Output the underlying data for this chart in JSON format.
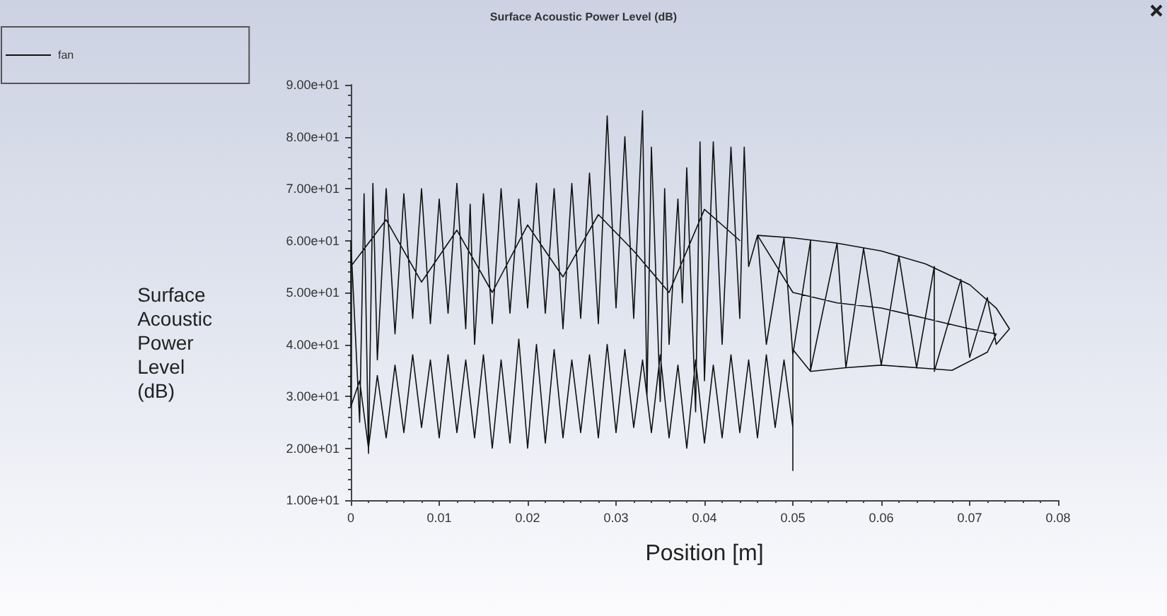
{
  "chart_data": {
    "type": "line",
    "title": "Surface Acoustic Power Level (dB)",
    "xlabel": "Position [m]",
    "ylabel": "Surface Acoustic Power Level (dB)",
    "legend": "top left",
    "xlim": [
      0,
      0.08
    ],
    "xticks": [
      0,
      0.01,
      0.02,
      0.03,
      0.04,
      0.05,
      0.06,
      0.07,
      0.08
    ],
    "ylim": [
      10,
      90
    ],
    "yticks": [
      {
        "value": 10,
        "label": "1.00e+01"
      },
      {
        "value": 20,
        "label": "2.00e+01"
      },
      {
        "value": 30,
        "label": "3.00e+01"
      },
      {
        "value": 40,
        "label": "4.00e+01"
      },
      {
        "value": 50,
        "label": "5.00e+01"
      },
      {
        "value": 60,
        "label": "6.00e+01"
      },
      {
        "value": 70,
        "label": "7.00e+01"
      },
      {
        "value": 80,
        "label": "8.00e+01"
      },
      {
        "value": 90,
        "label": "9.00e+01"
      }
    ],
    "series": [
      {
        "name": "fan",
        "color": "#111111",
        "x": [
          0,
          0,
          0.001,
          0.0015,
          0.002,
          0.0025,
          0.003,
          0.004,
          0.005,
          0.006,
          0.007,
          0.008,
          0.009,
          0.01,
          0.011,
          0.012,
          0.013,
          0.0135,
          0.014,
          0.015,
          0.016,
          0.017,
          0.018,
          0.019,
          0.02,
          0.021,
          0.022,
          0.023,
          0.024,
          0.025,
          0.026,
          0.027,
          0.028,
          0.029,
          0.03,
          0.031,
          0.032,
          0.033,
          0.0335,
          0.034,
          0.035,
          0.0355,
          0.036,
          0.037,
          0.0375,
          0.038,
          0.039,
          0.0395,
          0.04,
          0.041,
          0.042,
          0.043,
          0.044,
          0.0445,
          0.045,
          0.046,
          0.047,
          0.049,
          0.05,
          0.052,
          0.052,
          0.055,
          0.056,
          0.058,
          0.06,
          0.062,
          0.064,
          0.066,
          0.066,
          0.069,
          0.07,
          0.072,
          0.073,
          0.0745,
          0.073,
          0.07,
          0.065,
          0.06,
          0.055,
          0.05,
          0.046,
          0.05,
          0.055,
          0.06,
          0.065,
          0.07,
          0.073,
          0.072,
          0.068,
          0.064,
          0.06,
          0.056,
          0.052,
          0.05,
          0.05,
          0.05,
          0.049,
          0.048,
          0.047,
          0.046,
          0.045,
          0.044,
          0.043,
          0.042,
          0.041,
          0.04,
          0.039,
          0.038,
          0.037,
          0.036,
          0.035,
          0.034,
          0.033,
          0.032,
          0.031,
          0.03,
          0.029,
          0.028,
          0.027,
          0.026,
          0.025,
          0.024,
          0.023,
          0.022,
          0.021,
          0.02,
          0.019,
          0.018,
          0.017,
          0.016,
          0.015,
          0.014,
          0.013,
          0.012,
          0.011,
          0.01,
          0.009,
          0.008,
          0.007,
          0.006,
          0.005,
          0.004,
          0.003,
          0.002,
          0.001,
          0,
          0,
          0.004,
          0.008,
          0.012,
          0.016,
          0.02,
          0.024,
          0.028,
          0.032,
          0.036,
          0.04,
          0.044
        ],
        "values": [
          29,
          60,
          25,
          69,
          19,
          71,
          37,
          70,
          42,
          69,
          45,
          70,
          44,
          68,
          46,
          71,
          43,
          67,
          40,
          69,
          44,
          70,
          46,
          68,
          47,
          71,
          46,
          70,
          43,
          71,
          45,
          73,
          44,
          84,
          47,
          80,
          45,
          85,
          30,
          78,
          29,
          70,
          40,
          68,
          48,
          74,
          27,
          79,
          33,
          79,
          40,
          78,
          45,
          78,
          55,
          61,
          40,
          60.5,
          38,
          60,
          35,
          59.5,
          35.5,
          58.5,
          36,
          57,
          35.5,
          55,
          34.8,
          52.5,
          37.5,
          49,
          40,
          43,
          47,
          51.5,
          55.5,
          58,
          59.5,
          60.5,
          61,
          50,
          48,
          47,
          45,
          43,
          42,
          38.5,
          35,
          35.5,
          36,
          35.5,
          34.8,
          39,
          15.7,
          24,
          37,
          24,
          38,
          22,
          37,
          23,
          38,
          22,
          36,
          21,
          37,
          20,
          36,
          22,
          38,
          23,
          37,
          24,
          39,
          23,
          40,
          22,
          38,
          23,
          37,
          22,
          39,
          21,
          40,
          20,
          41,
          21,
          37,
          20,
          38,
          22,
          37,
          23,
          38,
          22,
          37,
          24,
          38,
          23,
          36,
          22,
          34,
          20,
          33,
          28,
          55,
          64,
          52,
          62,
          50,
          63,
          53,
          65,
          58,
          50,
          66,
          60
        ]
      }
    ]
  }
}
